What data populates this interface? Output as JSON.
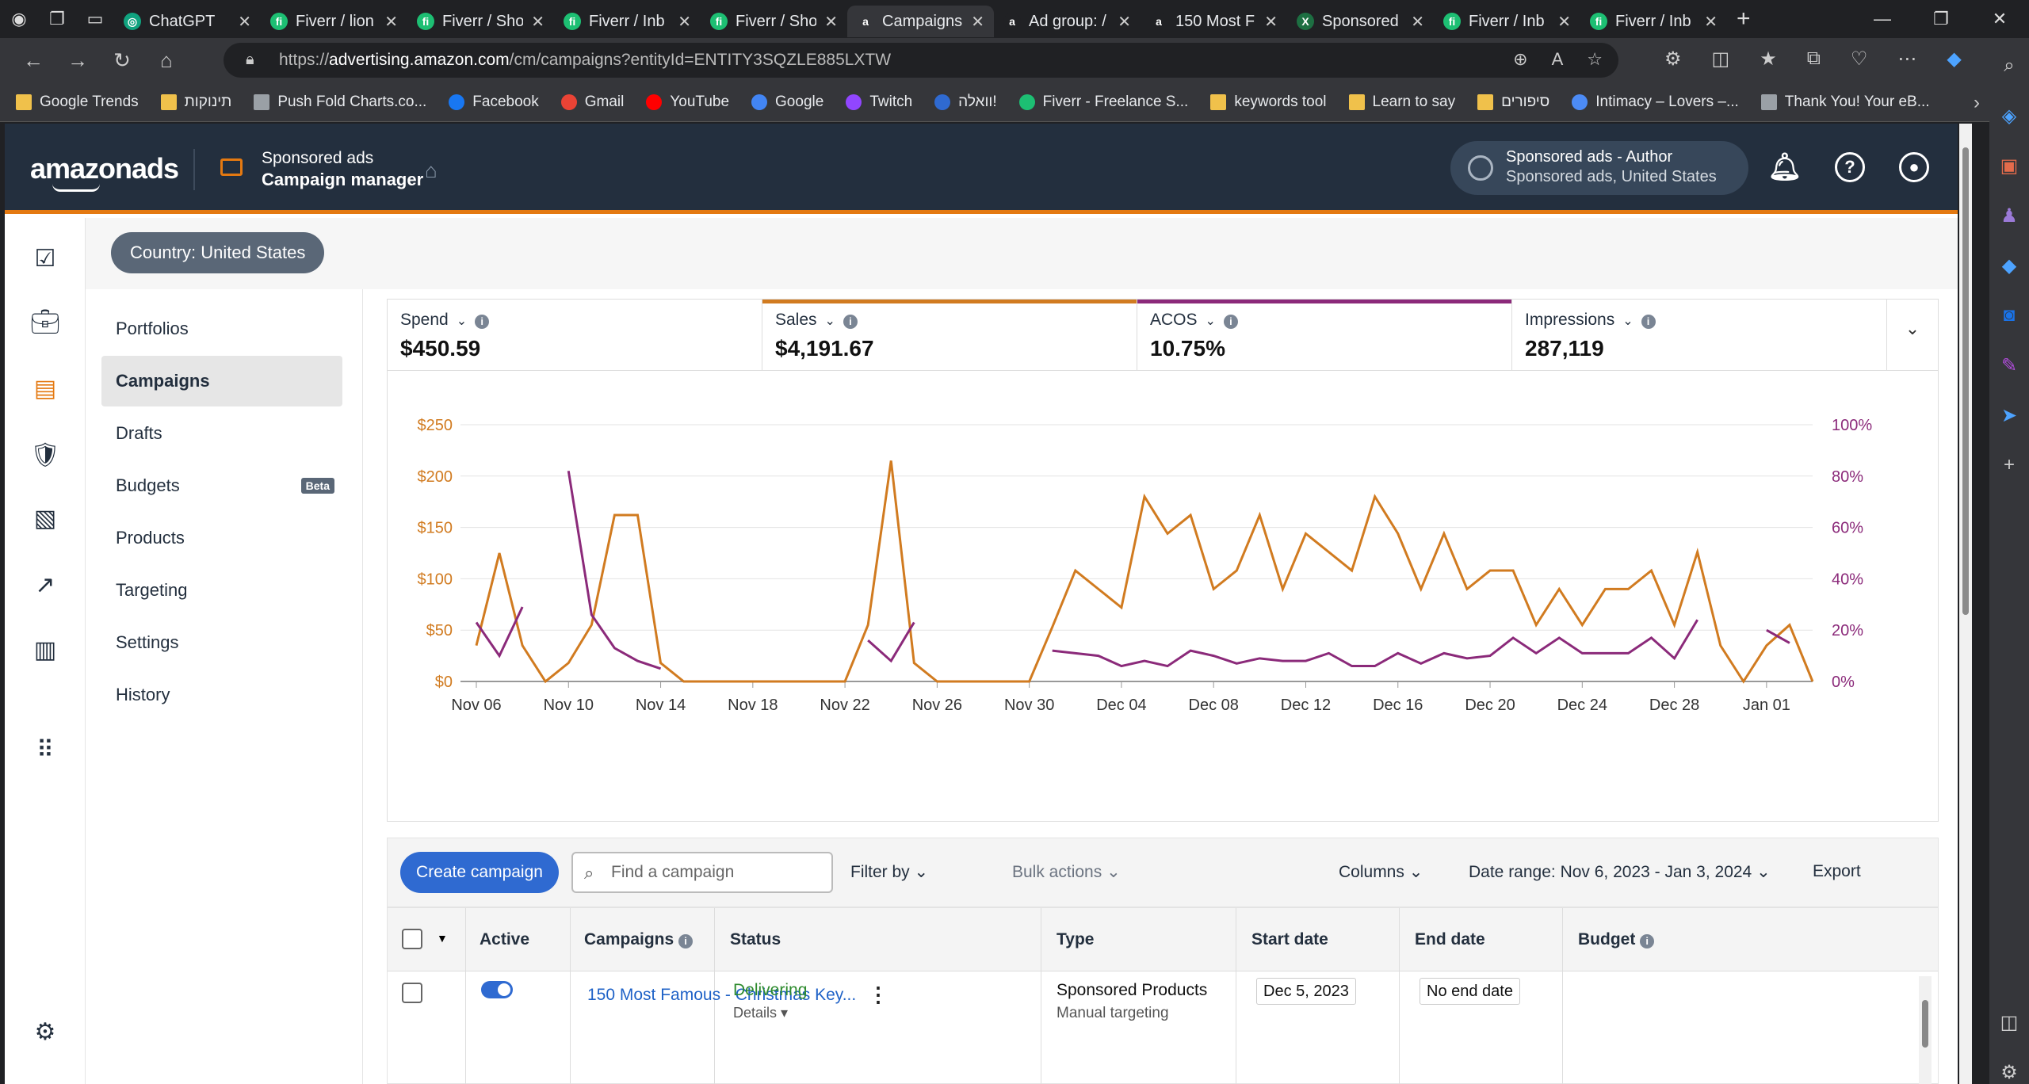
{
  "browser": {
    "tabs": [
      {
        "title": "ChatGPT",
        "fav": "chatgpt-icon",
        "color": "#10a37f"
      },
      {
        "title": "Fiverr / lion",
        "fav": "fiverr-icon",
        "color": "#1dbf73"
      },
      {
        "title": "Fiverr / Sho",
        "fav": "fiverr-icon",
        "color": "#1dbf73"
      },
      {
        "title": "Fiverr / Inb",
        "fav": "fiverr-icon",
        "color": "#1dbf73"
      },
      {
        "title": "Fiverr / Sho",
        "fav": "fiverr-icon",
        "color": "#1dbf73"
      },
      {
        "title": "Campaigns",
        "fav": "amazon-icon",
        "color": "#35363a",
        "active": true
      },
      {
        "title": "Ad group: /",
        "fav": "amazon-icon",
        "color": "#202124"
      },
      {
        "title": "150 Most F",
        "fav": "amazon-icon",
        "color": "#202124"
      },
      {
        "title": "Sponsored",
        "fav": "excel-icon",
        "color": "#1d6f42"
      },
      {
        "title": "Fiverr / Inb",
        "fav": "fiverr-icon",
        "color": "#1dbf73"
      },
      {
        "title": "Fiverr / Inb",
        "fav": "fiverr-icon",
        "color": "#1dbf73"
      }
    ],
    "url_prefix": "https://",
    "url_host": "advertising.amazon.com",
    "url_path": "/cm/campaigns?entityId=ENTITY3SQZLE885LXTW",
    "bookmarks": [
      {
        "label": "Google Trends",
        "icon": "folder-icon",
        "color": "#f0c14b"
      },
      {
        "label": "תינוקות",
        "icon": "folder-icon",
        "color": "#f0c14b"
      },
      {
        "label": "Push Fold Charts.co...",
        "icon": "page-icon",
        "color": "#9aa0a6"
      },
      {
        "label": "Facebook",
        "icon": "facebook-icon",
        "color": "#1877f2"
      },
      {
        "label": "Gmail",
        "icon": "gmail-icon",
        "color": "#ea4335"
      },
      {
        "label": "YouTube",
        "icon": "youtube-icon",
        "color": "#ff0000"
      },
      {
        "label": "Google",
        "icon": "google-icon",
        "color": "#4285f4"
      },
      {
        "label": "Twitch",
        "icon": "twitch-icon",
        "color": "#9146ff"
      },
      {
        "label": "וואלה!",
        "icon": "walla-icon",
        "color": "#2f6ad1"
      },
      {
        "label": "Fiverr - Freelance S...",
        "icon": "fiverr-icon",
        "color": "#1dbf73"
      },
      {
        "label": "keywords tool",
        "icon": "folder-icon",
        "color": "#f0c14b"
      },
      {
        "label": "Learn to say",
        "icon": "folder-icon",
        "color": "#f0c14b"
      },
      {
        "label": "סיפורים",
        "icon": "folder-icon",
        "color": "#f0c14b"
      },
      {
        "label": "Intimacy – Lovers –...",
        "icon": "globe-icon",
        "color": "#4c8bf5"
      },
      {
        "label": "Thank You! Your eB...",
        "icon": "page-icon",
        "color": "#9aa0a6"
      }
    ]
  },
  "header": {
    "logo": "amazonads",
    "product_line1": "Sponsored ads",
    "product_line2": "Campaign manager",
    "account_line1": "Sponsored ads - Author",
    "account_line2": "Sponsored ads, United States"
  },
  "country_label": "Country: United States",
  "subnav": [
    {
      "label": "Portfolios"
    },
    {
      "label": "Campaigns",
      "selected": true
    },
    {
      "label": "Drafts"
    },
    {
      "label": "Budgets",
      "badge": "Beta"
    },
    {
      "label": "Products"
    },
    {
      "label": "Targeting"
    },
    {
      "label": "Settings"
    },
    {
      "label": "History"
    }
  ],
  "metrics": [
    {
      "label": "Spend",
      "value": "$450.59",
      "bar_color": ""
    },
    {
      "label": "Sales",
      "value": "$4,191.67",
      "bar_color": "#d17b20"
    },
    {
      "label": "ACOS",
      "value": "10.75%",
      "bar_color": "#8b2a7a"
    },
    {
      "label": "Impressions",
      "value": "287,119",
      "bar_color": ""
    }
  ],
  "chart_data": {
    "type": "line",
    "x_ticks": [
      "Nov 06",
      "Nov 10",
      "Nov 14",
      "Nov 18",
      "Nov 22",
      "Nov 26",
      "Nov 30",
      "Dec 04",
      "Dec 08",
      "Dec 12",
      "Dec 16",
      "Dec 20",
      "Dec 24",
      "Dec 28",
      "Jan 01"
    ],
    "x_range": [
      "Nov 06",
      "Jan 03"
    ],
    "y_left_ticks": [
      "$0",
      "$50",
      "$100",
      "$150",
      "$200",
      "$250"
    ],
    "y_left_range": [
      0,
      250
    ],
    "y_right_ticks": [
      "0%",
      "20%",
      "40%",
      "60%",
      "80%",
      "100%"
    ],
    "y_right_range": [
      0,
      100
    ],
    "series": [
      {
        "color": "#d17b20",
        "axis": "left",
        "points": [
          [
            "Nov 06",
            35
          ],
          [
            "Nov 07",
            125
          ],
          [
            "Nov 08",
            35
          ],
          [
            "Nov 09",
            0
          ],
          [
            "Nov 10",
            18
          ],
          [
            "Nov 11",
            55
          ],
          [
            "Nov 12",
            162
          ],
          [
            "Nov 13",
            162
          ],
          [
            "Nov 14",
            18
          ],
          [
            "Nov 15",
            0
          ],
          [
            "Nov 16",
            0
          ],
          [
            "Nov 17",
            0
          ],
          [
            "Nov 18",
            0
          ],
          [
            "Nov 19",
            0
          ],
          [
            "Nov 20",
            0
          ],
          [
            "Nov 21",
            0
          ],
          [
            "Nov 22",
            0
          ],
          [
            "Nov 23",
            55
          ],
          [
            "Nov 24",
            215
          ],
          [
            "Nov 25",
            18
          ],
          [
            "Nov 26",
            0
          ],
          [
            "Nov 27",
            0
          ],
          [
            "Nov 28",
            0
          ],
          [
            "Nov 29",
            0
          ],
          [
            "Nov 30",
            0
          ],
          [
            "Dec 01",
            53
          ],
          [
            "Dec 02",
            108
          ],
          [
            "Dec 03",
            90
          ],
          [
            "Dec 04",
            72
          ],
          [
            "Dec 05",
            180
          ],
          [
            "Dec 06",
            144
          ],
          [
            "Dec 07",
            162
          ],
          [
            "Dec 08",
            90
          ],
          [
            "Dec 09",
            108
          ],
          [
            "Dec 10",
            162
          ],
          [
            "Dec 11",
            90
          ],
          [
            "Dec 12",
            144
          ],
          [
            "Dec 13",
            126
          ],
          [
            "Dec 14",
            108
          ],
          [
            "Dec 15",
            180
          ],
          [
            "Dec 16",
            144
          ],
          [
            "Dec 17",
            90
          ],
          [
            "Dec 18",
            144
          ],
          [
            "Dec 19",
            90
          ],
          [
            "Dec 20",
            108
          ],
          [
            "Dec 21",
            108
          ],
          [
            "Dec 22",
            55
          ],
          [
            "Dec 23",
            90
          ],
          [
            "Dec 24",
            55
          ],
          [
            "Dec 25",
            90
          ],
          [
            "Dec 26",
            90
          ],
          [
            "Dec 27",
            108
          ],
          [
            "Dec 28",
            55
          ],
          [
            "Dec 29",
            126
          ],
          [
            "Dec 30",
            35
          ],
          [
            "Dec 31",
            0
          ],
          [
            "Jan 01",
            35
          ],
          [
            "Jan 02",
            55
          ],
          [
            "Jan 03",
            0
          ]
        ]
      },
      {
        "color": "#8b2a7a",
        "axis": "right",
        "segments": [
          [
            [
              "Nov 06",
              23
            ],
            [
              "Nov 07",
              10
            ],
            [
              "Nov 08",
              29
            ]
          ],
          [
            [
              "Nov 10",
              82
            ],
            [
              "Nov 11",
              26
            ],
            [
              "Nov 12",
              13
            ],
            [
              "Nov 13",
              8
            ],
            [
              "Nov 14",
              5
            ]
          ],
          [
            [
              "Nov 23",
              16
            ],
            [
              "Nov 24",
              8
            ],
            [
              "Nov 25",
              23
            ]
          ],
          [
            [
              "Dec 01",
              12
            ],
            [
              "Dec 02",
              11
            ],
            [
              "Dec 03",
              10
            ],
            [
              "Dec 04",
              6
            ],
            [
              "Dec 05",
              8
            ],
            [
              "Dec 06",
              6
            ],
            [
              "Dec 07",
              12
            ],
            [
              "Dec 08",
              10
            ],
            [
              "Dec 09",
              7
            ],
            [
              "Dec 10",
              9
            ],
            [
              "Dec 11",
              8
            ],
            [
              "Dec 12",
              8
            ],
            [
              "Dec 13",
              11
            ],
            [
              "Dec 14",
              6
            ],
            [
              "Dec 15",
              6
            ],
            [
              "Dec 16",
              11
            ],
            [
              "Dec 17",
              7
            ],
            [
              "Dec 18",
              11
            ],
            [
              "Dec 19",
              9
            ],
            [
              "Dec 20",
              10
            ],
            [
              "Dec 21",
              17
            ],
            [
              "Dec 22",
              11
            ],
            [
              "Dec 23",
              17
            ],
            [
              "Dec 24",
              11
            ],
            [
              "Dec 25",
              11
            ],
            [
              "Dec 26",
              11
            ],
            [
              "Dec 27",
              17
            ],
            [
              "Dec 28",
              9
            ],
            [
              "Dec 29",
              24
            ]
          ],
          [
            [
              "Jan 01",
              20
            ],
            [
              "Jan 02",
              15
            ]
          ]
        ]
      }
    ],
    "grid": true,
    "left_axis_color": "#d17b20",
    "right_axis_color": "#8b2a7a"
  },
  "toolbar": {
    "create": "Create campaign",
    "search_placeholder": "Find a campaign",
    "filter": "Filter by",
    "bulk": "Bulk actions",
    "columns": "Columns",
    "date_range": "Date range: Nov 6, 2023 - Jan 3, 2024",
    "export": "Export"
  },
  "table": {
    "headers": {
      "active": "Active",
      "campaigns": "Campaigns",
      "status": "Status",
      "type": "Type",
      "start": "Start date",
      "end": "End date",
      "budget": "Budget"
    },
    "rows": [
      {
        "name": "150 Most Famous - Christmas Key...",
        "status": "Delivering",
        "details": "Details",
        "type": "Sponsored Products",
        "targeting": "Manual targeting",
        "start": "Dec 5, 2023",
        "end": "No end date"
      }
    ]
  }
}
